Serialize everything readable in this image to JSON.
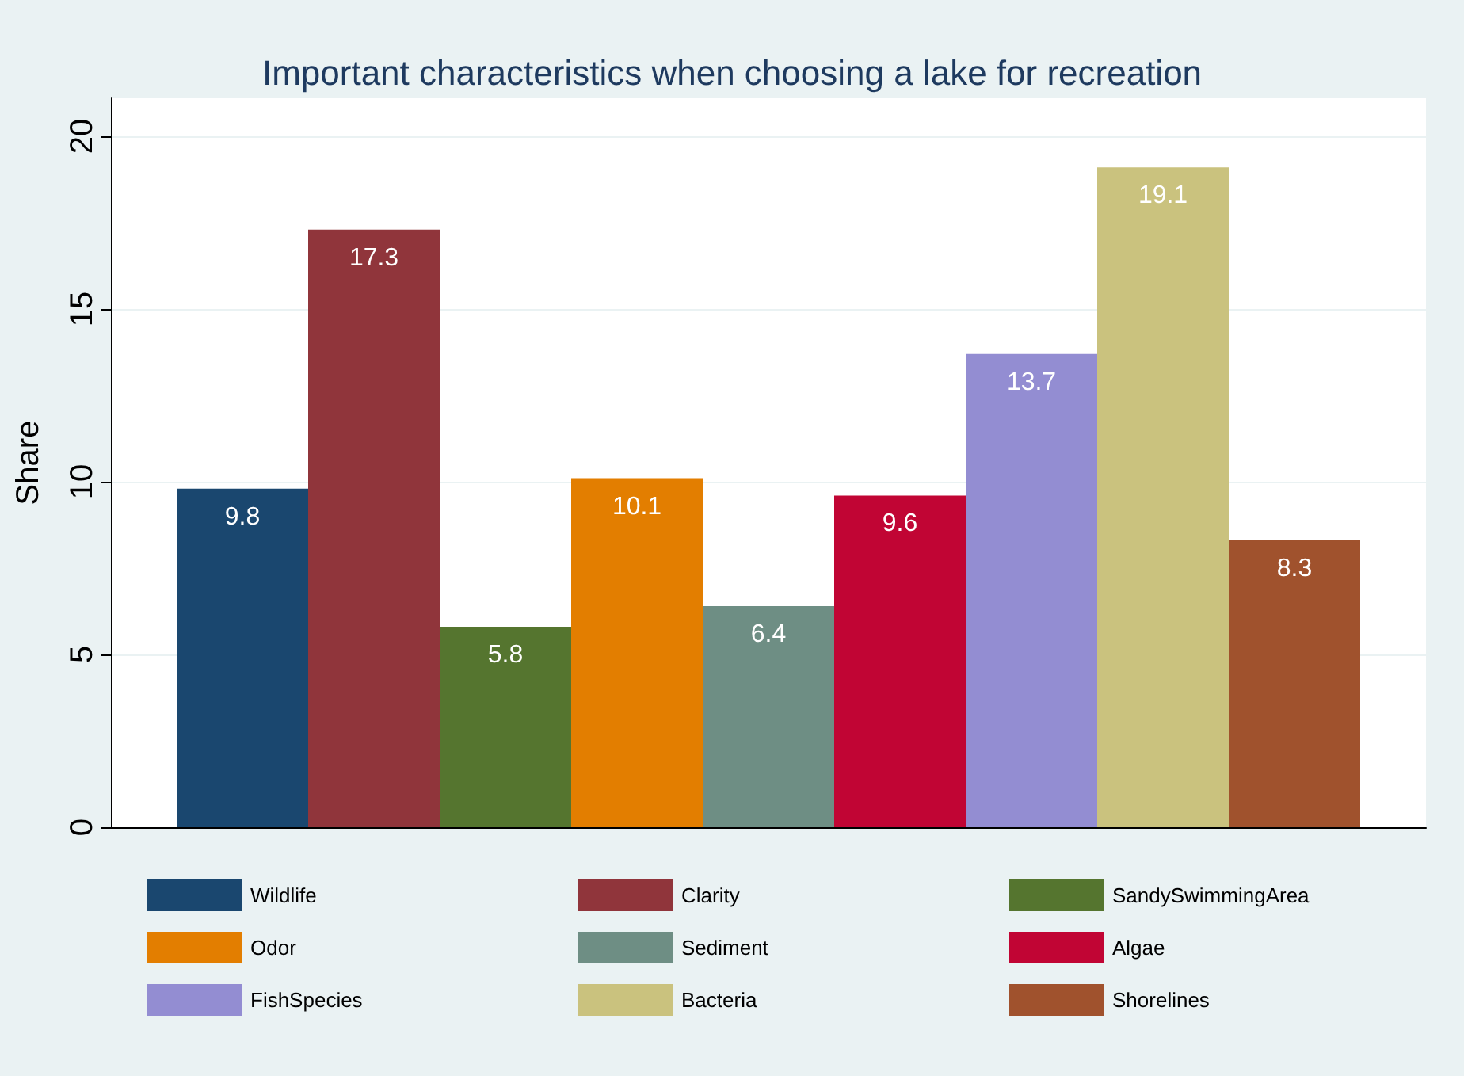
{
  "chart_data": {
    "type": "bar",
    "title": "Important characteristics when choosing a lake for recreation",
    "ylabel": "Share",
    "categories": [
      null
    ],
    "series": [
      {
        "name": "Wildlife",
        "color": "#1a476f",
        "values": [
          9.8
        ]
      },
      {
        "name": "Clarity",
        "color": "#90353b",
        "values": [
          17.3
        ]
      },
      {
        "name": "SandySwimmingArea",
        "color": "#55752f",
        "values": [
          5.8
        ]
      },
      {
        "name": "Odor",
        "color": "#e37e00",
        "values": [
          10.1
        ]
      },
      {
        "name": "Sediment",
        "color": "#6e8e84",
        "values": [
          6.4
        ]
      },
      {
        "name": "Algae",
        "color": "#c10534",
        "values": [
          9.6
        ]
      },
      {
        "name": "FishSpecies",
        "color": "#938dd2",
        "values": [
          13.7
        ]
      },
      {
        "name": "Bacteria",
        "color": "#cac27e",
        "values": [
          19.1
        ]
      },
      {
        "name": "Shorelines",
        "color": "#a0522d",
        "values": [
          8.3
        ]
      }
    ],
    "ylim": [
      0,
      21.1
    ],
    "yticks": [
      0,
      5,
      10,
      15,
      20
    ],
    "grid": "y",
    "legend": "bottom",
    "data_labels": true
  }
}
